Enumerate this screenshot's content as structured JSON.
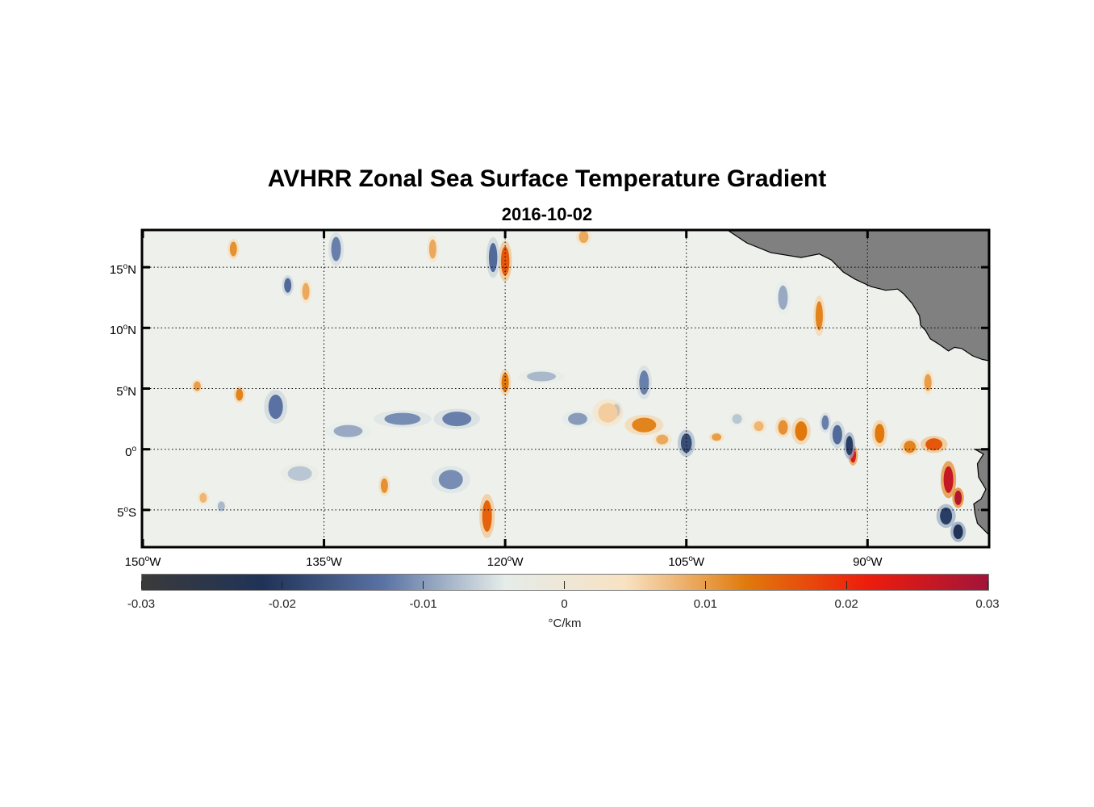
{
  "chart_data": {
    "type": "heatmap",
    "title": "AVHRR Zonal Sea Surface Temperature Gradient",
    "subtitle": "2016-10-02",
    "x_ticks": [
      {
        "deg": "150",
        "hem": "W",
        "value": -150
      },
      {
        "deg": "135",
        "hem": "W",
        "value": -135
      },
      {
        "deg": "120",
        "hem": "W",
        "value": -120
      },
      {
        "deg": "105",
        "hem": "W",
        "value": -105
      },
      {
        "deg": "90",
        "hem": "W",
        "value": -90
      }
    ],
    "y_ticks": [
      {
        "deg": "15",
        "hem": "N",
        "value": 15
      },
      {
        "deg": "10",
        "hem": "N",
        "value": 10
      },
      {
        "deg": "5",
        "hem": "N",
        "value": 5
      },
      {
        "deg": "0",
        "hem": "",
        "value": 0
      },
      {
        "deg": "5",
        "hem": "S",
        "value": -5
      }
    ],
    "xlim": [
      -150,
      -80
    ],
    "ylim": [
      -8,
      18
    ],
    "grid": true,
    "colorbar": {
      "min": -0.03,
      "max": 0.03,
      "ticks": [
        "-0.03",
        "-0.02",
        "-0.01",
        "0",
        "0.01",
        "0.02",
        "0.03"
      ],
      "units": "°C/km",
      "placement": "bottom",
      "colors": [
        "#3a3a3a",
        "#1f3358",
        "#5a73a4",
        "#e5ece9",
        "#f8e2c2",
        "#e07a0c",
        "#ee1c0c",
        "#a2143a"
      ]
    },
    "land_color": "#808080",
    "features": [
      {
        "lon": -91.2,
        "lat": -0.5,
        "amp": 0.024,
        "sx": 0.25,
        "sy": 0.6
      },
      {
        "lon": -91.5,
        "lat": 0.3,
        "amp": -0.02,
        "sx": 0.3,
        "sy": 0.8
      },
      {
        "lon": -83.3,
        "lat": -2.5,
        "amp": 0.026,
        "sx": 0.4,
        "sy": 1.1
      },
      {
        "lon": -82.5,
        "lat": -4.0,
        "amp": 0.028,
        "sx": 0.3,
        "sy": 0.6
      },
      {
        "lon": -84.5,
        "lat": 0.4,
        "amp": 0.016,
        "sx": 0.7,
        "sy": 0.5
      },
      {
        "lon": -83.5,
        "lat": -5.5,
        "amp": -0.02,
        "sx": 0.5,
        "sy": 0.7
      },
      {
        "lon": -82.5,
        "lat": -6.8,
        "amp": -0.022,
        "sx": 0.4,
        "sy": 0.6
      },
      {
        "lon": -86.5,
        "lat": 0.2,
        "amp": 0.012,
        "sx": 0.5,
        "sy": 0.5
      },
      {
        "lon": -89.0,
        "lat": 1.3,
        "amp": 0.013,
        "sx": 0.4,
        "sy": 0.8
      },
      {
        "lon": -92.5,
        "lat": 1.2,
        "amp": -0.014,
        "sx": 0.4,
        "sy": 0.8
      },
      {
        "lon": -93.5,
        "lat": 2.2,
        "amp": -0.012,
        "sx": 0.3,
        "sy": 0.6
      },
      {
        "lon": -95.5,
        "lat": 1.5,
        "amp": 0.013,
        "sx": 0.5,
        "sy": 0.8
      },
      {
        "lon": -97.0,
        "lat": 1.8,
        "amp": 0.011,
        "sx": 0.4,
        "sy": 0.6
      },
      {
        "lon": -99.0,
        "lat": 1.9,
        "amp": 0.008,
        "sx": 0.4,
        "sy": 0.4
      },
      {
        "lon": -100.8,
        "lat": 2.5,
        "amp": -0.007,
        "sx": 0.4,
        "sy": 0.4
      },
      {
        "lon": -102.5,
        "lat": 1.0,
        "amp": 0.01,
        "sx": 0.4,
        "sy": 0.3
      },
      {
        "lon": -105.0,
        "lat": 0.5,
        "amp": -0.018,
        "sx": 0.45,
        "sy": 0.8
      },
      {
        "lon": -108.5,
        "lat": 2.0,
        "amp": 0.012,
        "sx": 1.0,
        "sy": 0.6
      },
      {
        "lon": -107.0,
        "lat": 0.8,
        "amp": 0.009,
        "sx": 0.5,
        "sy": 0.4
      },
      {
        "lon": -110.8,
        "lat": 3.2,
        "amp": -0.013,
        "sx": 0.3,
        "sy": 0.5
      },
      {
        "lon": -114.0,
        "lat": 2.5,
        "amp": -0.01,
        "sx": 0.8,
        "sy": 0.5
      },
      {
        "lon": -120.0,
        "lat": 5.5,
        "amp": 0.013,
        "sx": 0.3,
        "sy": 0.8
      },
      {
        "lon": -124.0,
        "lat": 2.5,
        "amp": -0.012,
        "sx": 1.2,
        "sy": 0.6
      },
      {
        "lon": -128.5,
        "lat": 2.5,
        "amp": -0.011,
        "sx": 1.5,
        "sy": 0.5
      },
      {
        "lon": -133.0,
        "lat": 1.5,
        "amp": -0.009,
        "sx": 1.2,
        "sy": 0.5
      },
      {
        "lon": -139.0,
        "lat": 3.5,
        "amp": -0.013,
        "sx": 0.6,
        "sy": 1.0
      },
      {
        "lon": -142.0,
        "lat": 4.5,
        "amp": 0.012,
        "sx": 0.3,
        "sy": 0.5
      },
      {
        "lon": -145.5,
        "lat": 5.2,
        "amp": 0.01,
        "sx": 0.3,
        "sy": 0.4
      },
      {
        "lon": -121.5,
        "lat": -5.5,
        "amp": 0.015,
        "sx": 0.4,
        "sy": 1.3
      },
      {
        "lon": -124.5,
        "lat": -2.5,
        "amp": -0.011,
        "sx": 1.0,
        "sy": 0.8
      },
      {
        "lon": -130.0,
        "lat": -3.0,
        "amp": 0.011,
        "sx": 0.3,
        "sy": 0.6
      },
      {
        "lon": -137.0,
        "lat": -2.0,
        "amp": -0.007,
        "sx": 1.0,
        "sy": 0.6
      },
      {
        "lon": -145.0,
        "lat": -4.0,
        "amp": 0.008,
        "sx": 0.3,
        "sy": 0.4
      },
      {
        "lon": -143.5,
        "lat": -4.7,
        "amp": -0.008,
        "sx": 0.3,
        "sy": 0.4
      },
      {
        "lon": -120.0,
        "lat": 15.5,
        "amp": 0.016,
        "sx": 0.35,
        "sy": 1.2
      },
      {
        "lon": -121.0,
        "lat": 15.8,
        "amp": -0.014,
        "sx": 0.35,
        "sy": 1.2
      },
      {
        "lon": -134.0,
        "lat": 16.5,
        "amp": -0.012,
        "sx": 0.4,
        "sy": 1.0
      },
      {
        "lon": -138.0,
        "lat": 13.5,
        "amp": -0.014,
        "sx": 0.3,
        "sy": 0.6
      },
      {
        "lon": -136.5,
        "lat": 13.0,
        "amp": 0.009,
        "sx": 0.3,
        "sy": 0.7
      },
      {
        "lon": -142.5,
        "lat": 16.5,
        "amp": 0.011,
        "sx": 0.3,
        "sy": 0.6
      },
      {
        "lon": -126.0,
        "lat": 16.5,
        "amp": 0.009,
        "sx": 0.3,
        "sy": 0.8
      },
      {
        "lon": -113.5,
        "lat": 17.5,
        "amp": 0.009,
        "sx": 0.4,
        "sy": 0.5
      },
      {
        "lon": -94.0,
        "lat": 11.0,
        "amp": 0.012,
        "sx": 0.3,
        "sy": 1.2
      },
      {
        "lon": -97.0,
        "lat": 12.5,
        "amp": -0.009,
        "sx": 0.4,
        "sy": 1.0
      },
      {
        "lon": -85.0,
        "lat": 5.5,
        "amp": 0.01,
        "sx": 0.3,
        "sy": 0.7
      },
      {
        "lon": -108.5,
        "lat": 5.5,
        "amp": -0.012,
        "sx": 0.4,
        "sy": 1.0
      },
      {
        "lon": -111.5,
        "lat": 3.0,
        "amp": 0.006,
        "sx": 0.8,
        "sy": 0.8
      },
      {
        "lon": -117.0,
        "lat": 6.0,
        "amp": -0.008,
        "sx": 1.2,
        "sy": 0.4
      }
    ],
    "land": [
      [
        [
          -101.5,
          18
        ],
        [
          -100,
          17
        ],
        [
          -98,
          16.2
        ],
        [
          -95.5,
          15.8
        ],
        [
          -94,
          16.1
        ],
        [
          -93,
          15.6
        ],
        [
          -92,
          14.6
        ],
        [
          -91,
          14
        ],
        [
          -89.7,
          13.4
        ],
        [
          -88.5,
          13.1
        ],
        [
          -87.5,
          13.2
        ],
        [
          -87,
          12.8
        ],
        [
          -86.3,
          12
        ],
        [
          -85.7,
          11
        ],
        [
          -85.6,
          10.2
        ],
        [
          -85.2,
          9.8
        ],
        [
          -84.8,
          9.1
        ],
        [
          -84,
          8.6
        ],
        [
          -83.3,
          8.1
        ],
        [
          -82.8,
          8.4
        ],
        [
          -82.2,
          8.3
        ],
        [
          -81.3,
          7.7
        ],
        [
          -80.5,
          7.4
        ],
        [
          -80,
          7.3
        ],
        [
          -80,
          18
        ]
      ],
      [
        [
          -81.1,
          0
        ],
        [
          -80.4,
          -0.4
        ],
        [
          -80.9,
          -1.2
        ],
        [
          -80.8,
          -2.3
        ],
        [
          -80.2,
          -3.3
        ],
        [
          -80.6,
          -4.1
        ],
        [
          -81.2,
          -4.5
        ],
        [
          -81.1,
          -5.3
        ],
        [
          -80.9,
          -6.1
        ],
        [
          -80,
          -7
        ],
        [
          -80,
          0
        ]
      ]
    ]
  }
}
